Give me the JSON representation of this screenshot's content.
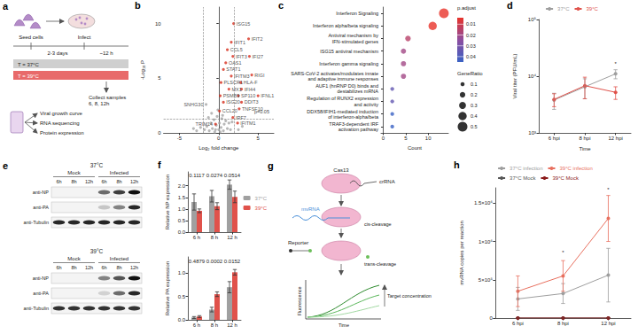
{
  "chart_data": [
    {
      "panel": "b",
      "type": "scatter",
      "x_label": "Log₂ fold change",
      "y_label": "-Log₁₀ P",
      "xlim": [
        -7,
        7
      ],
      "xticks": [
        -5,
        0,
        5
      ],
      "ylim": [
        0,
        11.5
      ],
      "yticks": [
        0,
        5,
        10
      ],
      "threshold_x": [
        -2,
        2
      ],
      "threshold_y": 1.3,
      "threshold_label": "p=0.05",
      "series": [
        {
          "color": "#a6a6a6",
          "points": [
            {
              "x": -1.8,
              "y": 0.3
            },
            {
              "x": -1.5,
              "y": 0.6
            },
            {
              "x": -1.2,
              "y": 0.2
            },
            {
              "x": -1.0,
              "y": 0.9
            },
            {
              "x": -0.8,
              "y": 0.4
            },
            {
              "x": -0.6,
              "y": 1.2
            },
            {
              "x": -0.5,
              "y": 0.1
            },
            {
              "x": -0.3,
              "y": 0.7
            },
            {
              "x": -0.2,
              "y": 1.5
            },
            {
              "x": 0.0,
              "y": 0.3
            },
            {
              "x": 0.1,
              "y": 0.9
            },
            {
              "x": 0.3,
              "y": 0.5
            },
            {
              "x": 0.4,
              "y": 1.3
            },
            {
              "x": 0.6,
              "y": 0.2
            },
            {
              "x": 0.7,
              "y": 0.8
            },
            {
              "x": 0.9,
              "y": 1.1
            },
            {
              "x": 1.1,
              "y": 0.4
            },
            {
              "x": 1.3,
              "y": 0.9
            },
            {
              "x": 1.5,
              "y": 0.3
            },
            {
              "x": 1.7,
              "y": 1.0
            },
            {
              "x": -2.3,
              "y": 0.5
            },
            {
              "x": -2.8,
              "y": 0.2
            },
            {
              "x": 2.5,
              "y": 0.3
            },
            {
              "x": -1.3,
              "y": 1.4
            },
            {
              "x": -0.9,
              "y": 1.8
            },
            {
              "x": 0.5,
              "y": 1.6
            },
            {
              "x": -0.1,
              "y": 2.1
            },
            {
              "x": -3.2,
              "y": 0.4
            },
            {
              "x": 3.0,
              "y": 0.6
            },
            {
              "x": -0.4,
              "y": 0.3
            },
            {
              "x": 0.2,
              "y": 0.1
            },
            {
              "x": -1.6,
              "y": 2.6,
              "label": "SNHG30"
            }
          ]
        },
        {
          "color": "#d7301f",
          "points": [
            {
              "x": 1.9,
              "y": 10.0,
              "label": "ISG15"
            },
            {
              "x": 1.6,
              "y": 8.3,
              "label": "IFIT1"
            },
            {
              "x": 3.8,
              "y": 8.6,
              "label": "IFIT2"
            },
            {
              "x": 1.1,
              "y": 7.6,
              "label": "CCL5"
            },
            {
              "x": 1.8,
              "y": 7.0,
              "label": "IFIT3"
            },
            {
              "x": 3.9,
              "y": 7.0,
              "label": "IFI27"
            },
            {
              "x": 0.9,
              "y": 6.4,
              "label": "OAS1"
            },
            {
              "x": 0.6,
              "y": 5.8,
              "label": "STAT1"
            },
            {
              "x": 1.6,
              "y": 5.2,
              "label": "IFITM3"
            },
            {
              "x": 4.2,
              "y": 5.3,
              "label": "RIGI"
            },
            {
              "x": 0.3,
              "y": 4.6,
              "label": "PLSCR1"
            },
            {
              "x": 2.8,
              "y": 4.6,
              "label": "HLA-F"
            },
            {
              "x": 1.3,
              "y": 4.0,
              "label": "MX1"
            },
            {
              "x": 2.9,
              "y": 4.0,
              "label": "IFI44"
            },
            {
              "x": 0.2,
              "y": 3.4,
              "label": "PSMB9"
            },
            {
              "x": 2.5,
              "y": 3.4,
              "label": "SP110"
            },
            {
              "x": 5.0,
              "y": 3.4,
              "label": "IFNL1"
            },
            {
              "x": 0.6,
              "y": 2.8,
              "label": "ISG20"
            },
            {
              "x": 2.9,
              "y": 2.8,
              "label": "DDIT3"
            },
            {
              "x": 2.6,
              "y": 2.2,
              "label": "TNFSF10"
            },
            {
              "x": 0.1,
              "y": 2.0,
              "label": "CCL20"
            },
            {
              "x": 1.8,
              "y": 1.4,
              "label": "IRF7"
            },
            {
              "x": -0.4,
              "y": 0.8,
              "label": "TRIM14"
            },
            {
              "x": 2.4,
              "y": 0.9,
              "label": "IFITM1"
            }
          ]
        }
      ]
    },
    {
      "panel": "c",
      "type": "dot",
      "x_label": "Count",
      "xlim": [
        -0.5,
        14.5
      ],
      "xticks": [
        0,
        5,
        10
      ],
      "categories": [
        "Interferon Signaling",
        "Interferon alpha/beta signaling",
        "Antiviral mechanism by\nIFN-stimulated genes",
        "ISG15 antiviral mechanism",
        "Interferon gamma signaling",
        "SARS-CoV-2 activates/modulates innate\nand adaptive immune responses",
        "AUF1 (hnRNP D0) binds and\ndestabilizes mRNA",
        "Regulation of RUNX2 expression\nand activity",
        "DDX58/IFIH1-mediated induction\nof interferon-alpha/beta",
        "TRAF3-dependent IRF\nactivation pathway"
      ],
      "values": [
        13.5,
        11,
        5.5,
        4.5,
        4.5,
        4.5,
        2,
        2,
        2,
        2
      ],
      "p_adjust": [
        0.004,
        0.004,
        0.015,
        0.02,
        0.02,
        0.02,
        0.035,
        0.035,
        0.045,
        0.045
      ],
      "gene_ratio": [
        0.5,
        0.4,
        0.2,
        0.18,
        0.18,
        0.18,
        0.08,
        0.08,
        0.08,
        0.08
      ],
      "color_label": "p.adjust",
      "color_range": [
        0.004,
        0.045
      ],
      "color_ticks": [
        0.01,
        0.02,
        0.03,
        0.04
      ],
      "size_label": "GeneRatio",
      "size_ticks": [
        0.1,
        0.2,
        0.3,
        0.4,
        0.5
      ]
    },
    {
      "panel": "d",
      "type": "line",
      "marker": "circle",
      "log": "y",
      "legend": "top",
      "x_label": "Time",
      "y_label": "Viral titer (PFU/mL)",
      "categories": [
        "6 hpi",
        "8 hpi",
        "12 hpi"
      ],
      "ylim": [
        1000,
        100000
      ],
      "yticks": [
        {
          "value": 1000,
          "label": "10³"
        },
        {
          "value": 10000,
          "label": "10⁴"
        },
        {
          "value": 100000,
          "label": "10⁵"
        }
      ],
      "series": [
        {
          "name": "37°C",
          "color": "#9e9e9e",
          "values": [
            3800,
            6500,
            11000
          ],
          "errors": [
            1200,
            2500,
            2000
          ]
        },
        {
          "name": "39°C",
          "color": "#e0524b",
          "values": [
            3900,
            6800,
            5200
          ],
          "errors": [
            1000,
            2800,
            1300
          ]
        }
      ],
      "annotations": [
        {
          "category": "12 hpi",
          "y": 15000,
          "text": "*"
        }
      ]
    },
    {
      "panel": "f",
      "type": "bar",
      "legend": "right",
      "y_label": "Relative NP expression",
      "categories": [
        "6 h",
        "8 h",
        "12 h"
      ],
      "ylim": [
        0,
        2.6
      ],
      "yticks": [
        {
          "value": 0,
          "label": "0.0"
        },
        {
          "value": 0.5,
          "label": "0.5"
        },
        {
          "value": 1,
          "label": "1.0"
        },
        {
          "value": 1.5,
          "label": "1.5"
        },
        {
          "value": 2,
          "label": "2.0"
        }
      ],
      "series": [
        {
          "name": "37°C",
          "color": "#a0a0a0",
          "values": [
            1.3,
            1.55,
            2.05
          ],
          "errors": [
            0.35,
            0.25,
            0.2
          ]
        },
        {
          "name": "39°C",
          "color": "#e0524b",
          "values": [
            0.92,
            1.12,
            1.52
          ],
          "errors": [
            0.08,
            0.15,
            0.25
          ]
        }
      ],
      "annotations": [
        {
          "category": "6 h",
          "y": 2.35,
          "text": "0.1117"
        },
        {
          "category": "8 h",
          "y": 2.35,
          "text": "0.0274"
        },
        {
          "category": "12 h",
          "y": 2.35,
          "text": "0.0514"
        }
      ]
    },
    {
      "type": "bar",
      "y_label": "Relative PA expression",
      "categories": [
        "6 h",
        "8 h",
        "12 h"
      ],
      "ylim": [
        0,
        1.35
      ],
      "yticks": [
        {
          "value": 0,
          "label": "0.0"
        },
        {
          "value": 0.5,
          "label": "0.5"
        },
        {
          "value": 1,
          "label": "1.0"
        }
      ],
      "series": [
        {
          "name": "37°C",
          "color": "#a0a0a0",
          "values": [
            0.05,
            0.22,
            0.7
          ],
          "errors": [
            0.02,
            0.05,
            0.12
          ]
        },
        {
          "name": "39°C",
          "color": "#e0524b",
          "values": [
            0.07,
            0.55,
            1.02
          ],
          "errors": [
            0.02,
            0.05,
            0.06
          ]
        }
      ],
      "annotations": [
        {
          "category": "6 h",
          "y": 1.2,
          "text": "0.4879"
        },
        {
          "category": "8 h",
          "y": 1.2,
          "text": "0.0002"
        },
        {
          "category": "12 h",
          "y": 1.2,
          "text": "0.0152"
        }
      ]
    },
    {
      "panel": "h",
      "type": "line",
      "marker": "circle",
      "legend": "top",
      "y_label": "mvRNA copies per reaction",
      "categories": [
        "6 hpi",
        "8 hpi",
        "12 hpi"
      ],
      "ylim": [
        0,
        1700000
      ],
      "yticks": [
        0,
        {
          "value": 500000,
          "label": "5×10⁵"
        },
        {
          "value": 1000000,
          "label": "1×10⁶"
        },
        {
          "value": 1500000,
          "label": "1.5×10⁶"
        }
      ],
      "series": [
        {
          "name": "37°C infection",
          "color": "#9e9e9e",
          "values": [
            250000,
            320000,
            560000
          ],
          "errors": [
            150000,
            130000,
            350000
          ]
        },
        {
          "name": "39°C infection",
          "color": "#e8705f",
          "values": [
            350000,
            550000,
            1300000
          ],
          "errors": [
            200000,
            200000,
            300000
          ]
        },
        {
          "name": "37°C Mock",
          "color": "#555555",
          "values": [
            0,
            0,
            0
          ],
          "errors": [
            0,
            0,
            0
          ]
        },
        {
          "name": "39°C Mock",
          "color": "#8b1a1a",
          "values": [
            0,
            0,
            0
          ],
          "errors": [
            0,
            0,
            0
          ]
        }
      ],
      "annotations": [
        {
          "category": "8 hpi",
          "y": 820000,
          "text": "*"
        },
        {
          "category": "12 hpi",
          "y": 1640000,
          "text": "*"
        }
      ]
    }
  ],
  "diagrams": {
    "schematic": {
      "panel": "a",
      "seed_label": "Seed cells",
      "infect_label": "Infect",
      "seed_duration": "2-3 days",
      "infect_duration": "~12 h",
      "conditions": [
        "T = 37°C",
        "T = 39°C"
      ],
      "collect": "Collect samples\n6, 8, 12h",
      "outputs": [
        "Viral growth curve",
        "RNA sequencing",
        "Protein expression"
      ]
    },
    "blot": {
      "panel": "e",
      "blots": [
        {
          "title": "37°C",
          "groups": [
            {
              "label": "Mock",
              "lanes": [
                "6h",
                "8h",
                "12h"
              ]
            },
            {
              "label": "Infected",
              "lanes": [
                "6h",
                "8h",
                "12h"
              ]
            }
          ],
          "rows": [
            {
              "label": "anti-NP",
              "intensity": [
                0,
                0,
                0,
                0.6,
                0.8,
                1
              ]
            },
            {
              "label": "anti-PA",
              "intensity": [
                0,
                0,
                0,
                0.2,
                0.5,
                0.9
              ]
            },
            {
              "label": "anti-Tubulin",
              "intensity": [
                0.9,
                0.9,
                0.9,
                0.9,
                0.9,
                0.9
              ]
            }
          ]
        },
        {
          "title": "39°C",
          "groups": [
            {
              "label": "Mock",
              "lanes": [
                "6h",
                "8h",
                "12h"
              ]
            },
            {
              "label": "Infected",
              "lanes": [
                "6h",
                "8h",
                "12h"
              ]
            }
          ],
          "rows": [
            {
              "label": "anti-NP",
              "intensity": [
                0,
                0,
                0,
                0.5,
                0.7,
                1
              ]
            },
            {
              "label": "anti-PA",
              "intensity": [
                0,
                0,
                0,
                0.15,
                0.6,
                0.9
              ]
            },
            {
              "label": "anti-Tubulin",
              "intensity": [
                0.85,
                0.85,
                0.85,
                0.85,
                0.85,
                0.85
              ]
            }
          ]
        }
      ]
    },
    "assay": {
      "panel": "g",
      "enzyme": "Cas13",
      "guide": "crRNA",
      "target": "mvRNA",
      "cis": "cis-cleavage",
      "reporter": "Reporter",
      "trans": "trans-cleavage",
      "y_axis": "Fluorescence",
      "x_axis": "Time",
      "trend": "Target concentration"
    }
  }
}
